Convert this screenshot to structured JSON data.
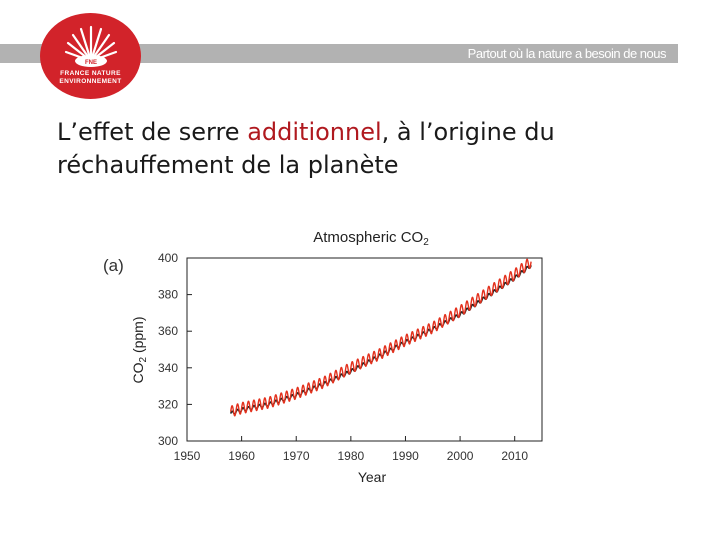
{
  "header": {
    "tagline": "Partout où la nature a besoin de nous",
    "logo": {
      "line1": "FRANCE NATURE",
      "line2": "ENVIRONNEMENT",
      "small_mark_text": "FNE"
    },
    "colors": {
      "bar": "#b2b2b2",
      "brand_red": "#d2232a"
    }
  },
  "slide": {
    "title_pre": "L’effet de serre ",
    "title_accent": "additionnel",
    "title_post": ", à l’origine du réchauffement de la planète",
    "accent_color": "#b0191f"
  },
  "chart_data": {
    "type": "line",
    "panel_label": "(a)",
    "title": "Atmospheric CO2",
    "xlabel": "Year",
    "ylabel": "CO2 (ppm)",
    "xlim": [
      1950,
      2015
    ],
    "ylim": [
      300,
      400
    ],
    "xticks": [
      1950,
      1960,
      1970,
      1980,
      1990,
      2000,
      2010
    ],
    "yticks": [
      300,
      320,
      340,
      360,
      380,
      400
    ],
    "grid": false,
    "series": [
      {
        "color": "#222222",
        "x": [
          1958,
          1960,
          1965,
          1970,
          1975,
          1980,
          1985,
          1990,
          1995,
          2000,
          2005,
          2010,
          2013
        ],
        "values": [
          315,
          317,
          320,
          325,
          331,
          338,
          346,
          354,
          361,
          369,
          379,
          389,
          396
        ]
      },
      {
        "color": "#e3311d",
        "x": [
          1958,
          1960,
          1965,
          1970,
          1975,
          1980,
          1985,
          1990,
          1995,
          2000,
          2005,
          2010,
          2013
        ],
        "values": [
          316,
          318,
          321,
          326,
          332,
          340,
          347,
          355,
          362,
          371,
          381,
          391,
          398
        ]
      }
    ]
  }
}
